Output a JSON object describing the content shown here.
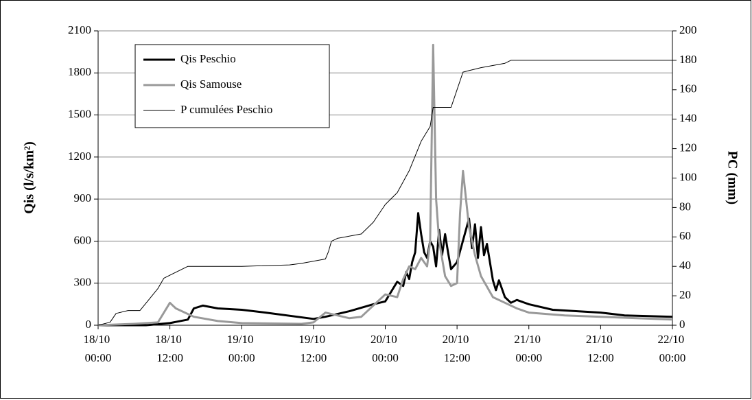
{
  "chart_data": {
    "type": "line",
    "y_label": "Qis (l/s/km²)",
    "y2_label": "PC (mm)",
    "xlim": [
      "18/10 00:00",
      "22/10 00:00"
    ],
    "xticks": [
      "18/10 00:00",
      "18/10 12:00",
      "19/10 00:00",
      "19/10 12:00",
      "20/10 00:00",
      "20/10 12:00",
      "21/10 00:00",
      "21/10 12:00",
      "22/10 00:00"
    ],
    "ylim": [
      0,
      2100
    ],
    "yticks": [
      0,
      300,
      600,
      900,
      1200,
      1500,
      1800,
      2100
    ],
    "y2lim": [
      0,
      200
    ],
    "y2ticks": [
      0,
      20,
      40,
      60,
      80,
      100,
      120,
      140,
      160,
      180,
      200
    ],
    "grid": true,
    "legend": "upper left",
    "series": [
      {
        "name": "Qis Peschio",
        "color": "#000000",
        "line_width": 3,
        "axis": "y",
        "x": [
          "18/10 00:00",
          "18/10 08:00",
          "18/10 12:00",
          "18/10 15:00",
          "18/10 16:00",
          "18/10 17:30",
          "18/10 20:00",
          "19/10 00:00",
          "19/10 04:00",
          "19/10 12:00",
          "19/10 14:00",
          "19/10 18:00",
          "19/10 22:00",
          "20/10 00:00",
          "20/10 01:00",
          "20/10 02:00",
          "20/10 03:00",
          "20/10 03:30",
          "20/10 04:00",
          "20/10 04:30",
          "20/10 05:00",
          "20/10 05:30",
          "20/10 06:00",
          "20/10 06:30",
          "20/10 07:00",
          "20/10 07:30",
          "20/10 08:00",
          "20/10 08:30",
          "20/10 09:00",
          "20/10 09:30",
          "20/10 10:00",
          "20/10 10:30",
          "20/10 11:00",
          "20/10 12:00",
          "20/10 14:00",
          "20/10 14:30",
          "20/10 15:00",
          "20/10 15:30",
          "20/10 16:00",
          "20/10 16:30",
          "20/10 17:00",
          "20/10 18:00",
          "20/10 18:30",
          "20/10 19:00",
          "20/10 20:00",
          "20/10 21:00",
          "20/10 22:00",
          "21/10 00:00",
          "21/10 04:00",
          "21/10 12:00",
          "21/10 16:00",
          "22/10 00:00"
        ],
        "values": [
          0,
          0,
          15,
          40,
          120,
          140,
          120,
          110,
          90,
          45,
          60,
          100,
          150,
          170,
          240,
          310,
          280,
          380,
          330,
          450,
          520,
          800,
          650,
          520,
          480,
          600,
          560,
          420,
          680,
          500,
          650,
          520,
          400,
          450,
          760,
          550,
          720,
          480,
          700,
          500,
          580,
          320,
          250,
          320,
          200,
          160,
          180,
          150,
          110,
          90,
          70,
          60
        ]
      },
      {
        "name": "Qis Samouse",
        "color": "#999999",
        "line_width": 3,
        "axis": "y",
        "x": [
          "18/10 00:00",
          "18/10 06:00",
          "18/10 10:00",
          "18/10 12:00",
          "18/10 13:00",
          "18/10 16:00",
          "18/10 20:00",
          "19/10 00:00",
          "19/10 10:00",
          "19/10 12:00",
          "19/10 14:00",
          "19/10 18:00",
          "19/10 20:00",
          "19/10 23:00",
          "20/10 00:00",
          "20/10 02:00",
          "20/10 03:00",
          "20/10 04:00",
          "20/10 05:00",
          "20/10 06:00",
          "20/10 07:00",
          "20/10 07:30",
          "20/10 08:00",
          "20/10 08:30",
          "20/10 09:00",
          "20/10 10:00",
          "20/10 11:00",
          "20/10 12:00",
          "20/10 12:30",
          "20/10 13:00",
          "20/10 14:00",
          "20/10 15:00",
          "20/10 16:00",
          "20/10 18:00",
          "20/10 20:00",
          "20/10 22:00",
          "21/10 00:00",
          "21/10 06:00",
          "21/10 12:00",
          "21/10 18:00",
          "22/10 00:00"
        ],
        "values": [
          0,
          10,
          20,
          160,
          120,
          60,
          30,
          15,
          10,
          20,
          90,
          50,
          60,
          180,
          220,
          200,
          330,
          420,
          400,
          480,
          420,
          600,
          2000,
          900,
          600,
          350,
          280,
          300,
          800,
          1100,
          700,
          500,
          350,
          200,
          160,
          120,
          90,
          70,
          60,
          50,
          40
        ]
      },
      {
        "name": "P cumulées Peschio",
        "color": "#000000",
        "line_width": 1,
        "axis": "y2",
        "x": [
          "18/10 00:00",
          "18/10 02:00",
          "18/10 03:00",
          "18/10 05:00",
          "18/10 07:00",
          "18/10 08:00",
          "18/10 10:00",
          "18/10 11:00",
          "18/10 13:00",
          "18/10 15:00",
          "19/10 00:00",
          "19/10 08:00",
          "19/10 10:00",
          "19/10 14:00",
          "19/10 14:30",
          "19/10 15:00",
          "19/10 16:00",
          "19/10 20:00",
          "19/10 22:00",
          "20/10 00:00",
          "20/10 02:00",
          "20/10 04:00",
          "20/10 06:00",
          "20/10 07:30",
          "20/10 08:00",
          "20/10 11:00",
          "20/10 12:00",
          "20/10 13:00",
          "20/10 14:00",
          "20/10 16:00",
          "20/10 20:00",
          "20/10 21:00",
          "22/10 00:00"
        ],
        "values": [
          0,
          2,
          8,
          10,
          10,
          15,
          25,
          32,
          36,
          40,
          40,
          41,
          42,
          45,
          50,
          57,
          59,
          62,
          70,
          82,
          90,
          105,
          125,
          135,
          148,
          148,
          160,
          172,
          173,
          175,
          178,
          180,
          180
        ]
      }
    ]
  }
}
